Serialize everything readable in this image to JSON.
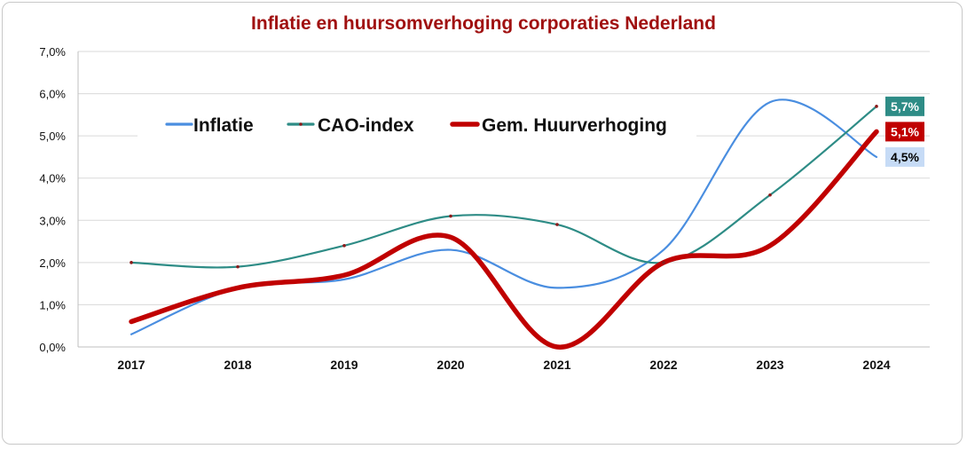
{
  "chart_data": {
    "type": "line",
    "title": "Inflatie en huursomverhoging corporaties Nederland",
    "categories": [
      "2017",
      "2018",
      "2019",
      "2020",
      "2021",
      "2022",
      "2023",
      "2024"
    ],
    "ylim": [
      0,
      7
    ],
    "yticks": [
      "0,0%",
      "1,0%",
      "2,0%",
      "3,0%",
      "4,0%",
      "5,0%",
      "6,0%",
      "7,0%"
    ],
    "grid": true,
    "legend_position": "top-left",
    "series": [
      {
        "name": "Inflatie",
        "values": [
          0.3,
          1.4,
          1.6,
          2.3,
          1.4,
          2.3,
          5.8,
          4.5
        ],
        "color": "#4a8ee0",
        "end_label": "4,5%",
        "label_bg": "#c6dbf6",
        "label_color": "#000000"
      },
      {
        "name": "CAO-index",
        "values": [
          2.0,
          1.9,
          2.4,
          3.1,
          2.9,
          2.0,
          3.6,
          5.7
        ],
        "color": "#2e8c86",
        "end_label": "5,7%",
        "label_bg": "#2e8c86",
        "label_color": "#ffffff"
      },
      {
        "name": "Gem. Huurverhoging",
        "values": [
          0.6,
          1.4,
          1.7,
          2.6,
          0.0,
          2.0,
          2.4,
          5.1
        ],
        "color": "#c00000",
        "end_label": "5,1%",
        "label_bg": "#c00000",
        "label_color": "#ffffff"
      }
    ],
    "title_color": "#a01010"
  }
}
